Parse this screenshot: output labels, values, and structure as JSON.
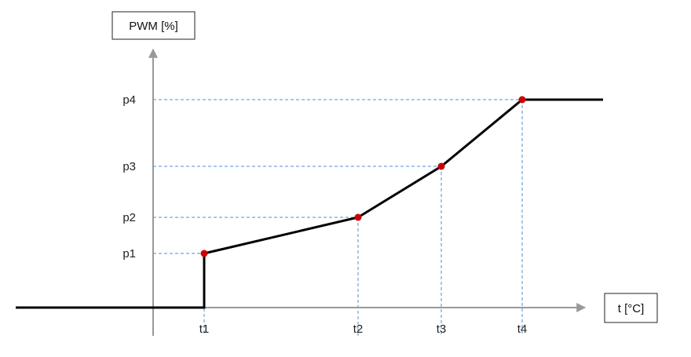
{
  "chart_data": {
    "type": "line",
    "title": "",
    "xlabel": "t [°C]",
    "ylabel": "PWM [%]",
    "x_ticks": [
      "t1",
      "t2",
      "t3",
      "t4"
    ],
    "y_ticks": [
      "p1",
      "p2",
      "p3",
      "p4"
    ],
    "series": [
      {
        "points": [
          {
            "x": "t1",
            "y": "p1"
          },
          {
            "x": "t2",
            "y": "p2"
          },
          {
            "x": "t3",
            "y": "p3"
          },
          {
            "x": "t4",
            "y": "p4"
          }
        ]
      }
    ],
    "below_t1": 0,
    "above_t4": "p4",
    "grid": "dashed guides from each point to both axes",
    "colors": {
      "curve": "#000000",
      "points": "#cc0000",
      "guides": "#4a90d9",
      "axes": "#999999"
    }
  }
}
